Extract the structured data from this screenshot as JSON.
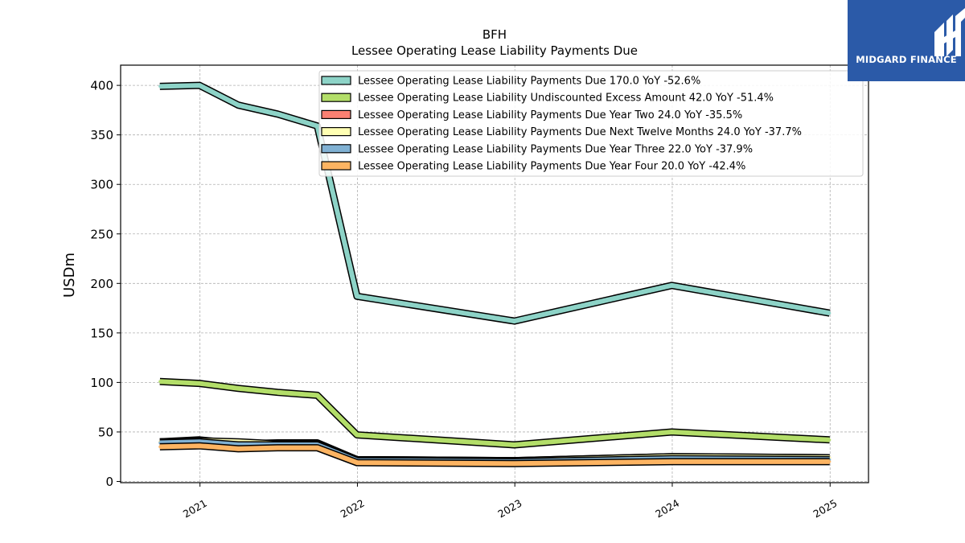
{
  "chart_data": {
    "type": "line",
    "title": "BFH",
    "subtitle": "Lessee Operating Lease Liability Payments Due",
    "xlabel": "",
    "ylabel": "USDm",
    "ylim": [
      0,
      420
    ],
    "yticks": [
      0,
      50,
      100,
      150,
      200,
      250,
      300,
      350,
      400
    ],
    "xticks": [
      "2021",
      "2022",
      "2023",
      "2024",
      "2025"
    ],
    "xlim": [
      "2020-07-01",
      "2025-03-31"
    ],
    "grid": true,
    "legend_position": "top-right",
    "x": [
      "2020-09-30",
      "2020-12-31",
      "2021-03-31",
      "2021-06-30",
      "2021-09-30",
      "2021-12-31",
      "2022-12-31",
      "2023-12-31",
      "2024-12-31"
    ],
    "series": [
      {
        "name": "Lessee Operating Lease Liability Payments Due",
        "legend": "Lessee Operating Lease Liability Payments Due  170.0 YoY -52.6%",
        "color": "#8dd3c7",
        "values": [
          399,
          400,
          380,
          371,
          359,
          187,
          162,
          198,
          170
        ]
      },
      {
        "name": "Lessee Operating Lease Liability Undiscounted Excess Amount",
        "legend": "Lessee Operating Lease Liability Undiscounted Excess Amount  42.0 YoY -51.4%",
        "color": "#b3de69",
        "values": [
          101,
          99,
          94,
          90,
          87,
          47,
          37,
          50,
          42
        ]
      },
      {
        "name": "Lessee Operating Lease Liability Payments Due Year Two",
        "legend": "Lessee Operating Lease Liability Payments Due Year Two  24.0 YoY -35.5%",
        "color": "#fb8072",
        "values": [
          40,
          42,
          38,
          39,
          39,
          22,
          21,
          25,
          24
        ]
      },
      {
        "name": "Lessee Operating Lease Liability Payments Due Next Twelve Months",
        "legend": "Lessee Operating Lease Liability Payments Due Next Twelve Months  24.0 YoY -37.7%",
        "color": "#ffffb3",
        "values": [
          40,
          41,
          40,
          38,
          38,
          22,
          21,
          25,
          24
        ]
      },
      {
        "name": "Lessee Operating Lease Liability Payments Due Year Three",
        "legend": "Lessee Operating Lease Liability Payments Due Year Three  22.0 YoY -37.9%",
        "color": "#80b1d3",
        "values": [
          39,
          40,
          37,
          37,
          37,
          21,
          20,
          23,
          22
        ]
      },
      {
        "name": "Lessee Operating Lease Liability Payments Due Year Four",
        "legend": "Lessee Operating Lease Liability Payments Due Year Four  20.0 YoY -42.4%",
        "color": "#fdb462",
        "values": [
          35,
          36,
          33,
          34,
          34,
          19,
          18,
          20,
          20
        ]
      }
    ]
  },
  "logo": {
    "text": "MIDGARD FINANCE",
    "color": "#2b5aa8"
  }
}
